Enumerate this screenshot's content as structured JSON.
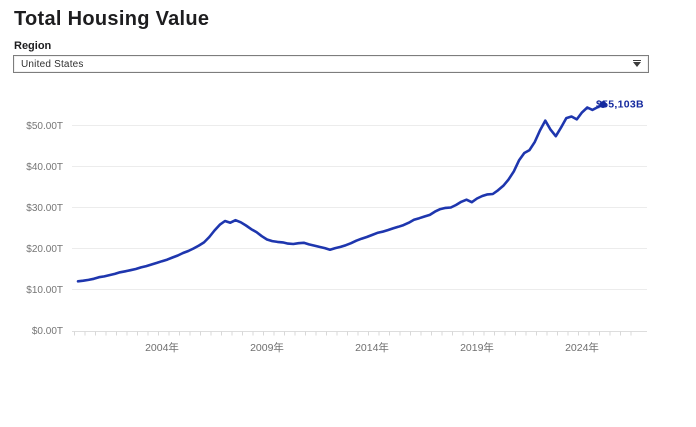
{
  "header": {
    "title": "Total Housing Value"
  },
  "region_selector": {
    "label": "Region",
    "selected_value": "United States",
    "caret_icon": "chevron-down"
  },
  "chart_data": {
    "type": "line",
    "title": "Total Housing Value",
    "grid": "horizontal",
    "legend": "none",
    "x_ticks": {
      "years": [
        2004,
        2009,
        2014,
        2019,
        2024
      ],
      "labels": [
        "2004年",
        "2009年",
        "2014年",
        "2019年",
        "2024年"
      ]
    },
    "y_ticks": {
      "values": [
        0,
        10,
        20,
        30,
        40,
        50
      ],
      "labels": [
        "$0.00T",
        "$10.00T",
        "$20.00T",
        "$30.00T",
        "$40.00T",
        "$50.00T"
      ]
    },
    "ylim": [
      0,
      58
    ],
    "xlim": [
      1999.7,
      2027.1
    ],
    "end_label": "$55,103B",
    "end_value_trillions": 55.103,
    "series": [
      {
        "name": "United States total housing value ($T)",
        "x_start": 2000,
        "x_step": 0.25,
        "values": [
          12.0,
          12.15,
          12.35,
          12.6,
          13.0,
          13.2,
          13.5,
          13.8,
          14.2,
          14.45,
          14.7,
          15.0,
          15.4,
          15.7,
          16.1,
          16.5,
          16.9,
          17.3,
          17.8,
          18.3,
          18.9,
          19.4,
          20.0,
          20.7,
          21.5,
          22.8,
          24.4,
          25.8,
          26.7,
          26.3,
          26.9,
          26.4,
          25.6,
          24.7,
          24.0,
          23.0,
          22.2,
          21.8,
          21.6,
          21.5,
          21.2,
          21.1,
          21.3,
          21.4,
          21.0,
          20.7,
          20.4,
          20.1,
          19.7,
          20.1,
          20.4,
          20.8,
          21.3,
          21.9,
          22.4,
          22.8,
          23.3,
          23.8,
          24.1,
          24.5,
          24.9,
          25.3,
          25.7,
          26.3,
          27.0,
          27.4,
          27.8,
          28.2,
          29.0,
          29.6,
          29.9,
          30.0,
          30.6,
          31.4,
          31.9,
          31.3,
          32.2,
          32.8,
          33.2,
          33.3,
          34.2,
          35.3,
          36.8,
          38.8,
          41.5,
          43.3,
          44.0,
          46.0,
          48.8,
          51.2,
          49.0,
          47.4,
          49.5,
          51.8,
          52.2,
          51.5,
          53.2,
          54.4,
          53.8,
          54.5,
          55.103
        ]
      }
    ],
    "colors": {
      "line": "#1e36ae",
      "end_label": "#13289e",
      "marker": "#13289e",
      "grid": "#ececec",
      "axis": "#dddddd",
      "minor_tick": "#d8d8d8",
      "y_label": "#757575",
      "x_label": "#6f6f6f"
    }
  }
}
